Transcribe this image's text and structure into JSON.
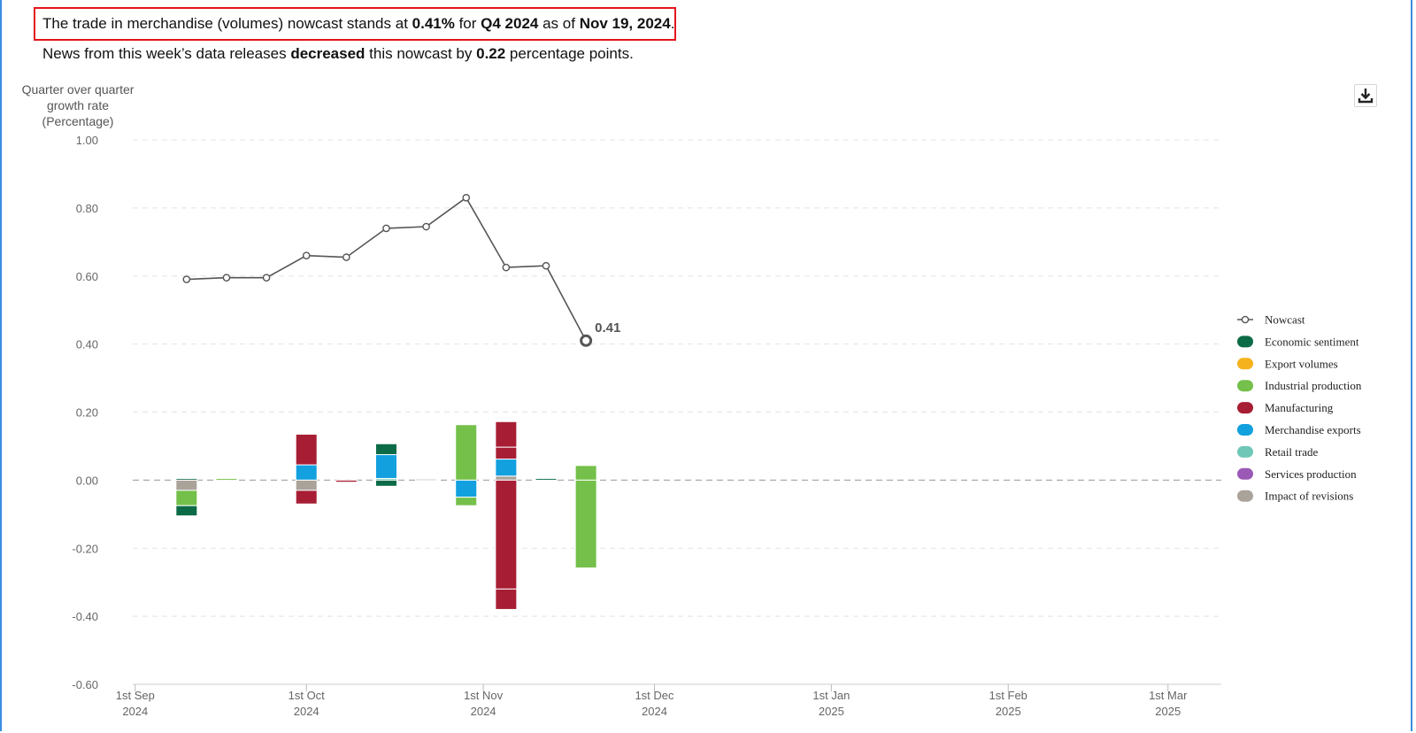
{
  "header": {
    "line1": {
      "pre": "The trade in merchandise (volumes) nowcast stands at ",
      "value": "0.41%",
      "mid": " for ",
      "quarter": "Q4 2024",
      "mid2": " as of ",
      "date": "Nov 19, 2024",
      "post": "."
    },
    "line2": {
      "pre": "News from this week’s data releases ",
      "direction": "decreased",
      "mid": " this nowcast by ",
      "change": "0.22",
      "post": " percentage points."
    }
  },
  "download_icon": "download-icon",
  "chart_data": {
    "type": "bar",
    "ylabel": [
      "Quarter over quarter",
      "growth rate",
      "(Percentage)"
    ],
    "ylim": [
      -0.6,
      1.0
    ],
    "yticks": [
      1.0,
      0.8,
      0.6,
      0.4,
      0.2,
      0.0,
      -0.2,
      -0.4,
      -0.6
    ],
    "ytick_labels": [
      "1.00",
      "0.80",
      "0.60",
      "0.40",
      "0.20",
      "0.00",
      "-0.20",
      "-0.40",
      "-0.60"
    ],
    "xticks": [
      {
        "date": "2024-09-01",
        "label": [
          "1st Sep",
          "2024"
        ]
      },
      {
        "date": "2024-10-01",
        "label": [
          "1st Oct",
          "2024"
        ]
      },
      {
        "date": "2024-11-01",
        "label": [
          "1st Nov",
          "2024"
        ]
      },
      {
        "date": "2024-12-01",
        "label": [
          "1st Dec",
          "2024"
        ]
      },
      {
        "date": "2025-01-01",
        "label": [
          "1st Jan",
          "2025"
        ]
      },
      {
        "date": "2025-02-01",
        "label": [
          "1st Feb",
          "2025"
        ]
      },
      {
        "date": "2025-03-01",
        "label": [
          "1st Mar",
          "2025"
        ]
      }
    ],
    "xlim": [
      "2024-08-28",
      "2025-03-06"
    ],
    "grid": true,
    "legend_position": "right",
    "nowcast": {
      "name": "Nowcast",
      "color": "#555555",
      "points": [
        {
          "date": "2024-09-10",
          "value": 0.59
        },
        {
          "date": "2024-09-17",
          "value": 0.595
        },
        {
          "date": "2024-09-24",
          "value": 0.595
        },
        {
          "date": "2024-10-01",
          "value": 0.66
        },
        {
          "date": "2024-10-08",
          "value": 0.655
        },
        {
          "date": "2024-10-15",
          "value": 0.74
        },
        {
          "date": "2024-10-22",
          "value": 0.745
        },
        {
          "date": "2024-10-29",
          "value": 0.83
        },
        {
          "date": "2024-11-05",
          "value": 0.625
        },
        {
          "date": "2024-11-12",
          "value": 0.63
        },
        {
          "date": "2024-11-19",
          "value": 0.41
        }
      ],
      "end_label": "0.41"
    },
    "series": [
      {
        "name": "Economic sentiment",
        "color": "#0b6b47"
      },
      {
        "name": "Export volumes",
        "color": "#f5b21c"
      },
      {
        "name": "Industrial production",
        "color": "#74c04a"
      },
      {
        "name": "Manufacturing",
        "color": "#a71e34"
      },
      {
        "name": "Merchandise exports",
        "color": "#12a0df"
      },
      {
        "name": "Retail trade",
        "color": "#6fc7b8"
      },
      {
        "name": "Services production",
        "color": "#9b59b6"
      },
      {
        "name": "Impact of revisions",
        "color": "#aaa39a"
      }
    ],
    "bars": [
      {
        "date": "2024-09-10",
        "segments": [
          {
            "series": "Economic sentiment",
            "value": 0.005
          },
          {
            "series": "Impact of revisions",
            "value": -0.03
          },
          {
            "series": "Industrial production",
            "value": -0.045
          },
          {
            "series": "Economic sentiment",
            "value": -0.03
          }
        ]
      },
      {
        "date": "2024-09-17",
        "segments": [
          {
            "series": "Industrial production",
            "value": 0.005
          }
        ]
      },
      {
        "date": "2024-10-01",
        "segments": [
          {
            "series": "Merchandise exports",
            "value": 0.045
          },
          {
            "series": "Manufacturing",
            "value": 0.09
          },
          {
            "series": "Impact of revisions",
            "value": -0.03
          },
          {
            "series": "Manufacturing",
            "value": -0.04
          }
        ]
      },
      {
        "date": "2024-10-08",
        "segments": [
          {
            "series": "Manufacturing",
            "value": -0.006
          }
        ]
      },
      {
        "date": "2024-10-15",
        "segments": [
          {
            "series": "Retail trade",
            "value": 0.005
          },
          {
            "series": "Merchandise exports",
            "value": 0.07
          },
          {
            "series": "Economic sentiment",
            "value": 0.032
          },
          {
            "series": "Economic sentiment",
            "value": -0.018
          }
        ]
      },
      {
        "date": "2024-10-22",
        "segments": [
          {
            "series": "Impact of revisions",
            "value": 0.003
          }
        ]
      },
      {
        "date": "2024-10-29",
        "segments": [
          {
            "series": "Industrial production",
            "value": 0.163
          },
          {
            "series": "Merchandise exports",
            "value": -0.05
          },
          {
            "series": "Industrial production",
            "value": -0.025
          }
        ]
      },
      {
        "date": "2024-11-05",
        "segments": [
          {
            "series": "Impact of revisions",
            "value": 0.012
          },
          {
            "series": "Merchandise exports",
            "value": 0.05
          },
          {
            "series": "Manufacturing",
            "value": 0.035
          },
          {
            "series": "Manufacturing",
            "value": 0.075
          },
          {
            "series": "Manufacturing",
            "value": -0.32
          },
          {
            "series": "Manufacturing",
            "value": -0.06
          }
        ]
      },
      {
        "date": "2024-11-12",
        "segments": [
          {
            "series": "Economic sentiment",
            "value": 0.005
          }
        ]
      },
      {
        "date": "2024-11-19",
        "segments": [
          {
            "series": "Industrial production",
            "value": 0.043
          },
          {
            "series": "Industrial production",
            "value": -0.258
          }
        ]
      }
    ]
  }
}
